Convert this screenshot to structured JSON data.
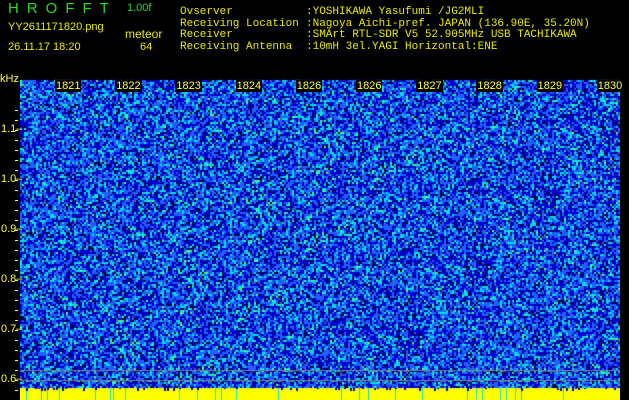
{
  "header": {
    "app_title": "HROFFT",
    "version": "1.00f",
    "filename": "YY2611171820.png",
    "datetime": "26.11.17 18:20",
    "mode_label": "meteor",
    "count": "64",
    "info": [
      {
        "label": "Ovserver",
        "value": ":YOSHIKAWA Yasufumi /JG2MLI"
      },
      {
        "label": "Receiving Location",
        "value": ":Nagoya Aichi-pref. JAPAN (136.90E, 35.20N)"
      },
      {
        "label": "Receiver",
        "value": ":SMArt RTL-SDR V5 52.905MHz USB TACHIKAWA"
      },
      {
        "label": "Receiving Antenna",
        "value": ":10mH 3el.YAGI Horizontal:ENE"
      }
    ]
  },
  "chart_data": {
    "type": "heatmap",
    "ylabel": "kHz",
    "x_tick_labels": [
      "1821",
      "1822",
      "1823",
      "1824",
      "1826",
      "1826",
      "1827",
      "1828",
      "1829",
      "1830"
    ],
    "y_tick_labels": [
      "1.1",
      "1.0",
      "0.9",
      "0.8",
      "0.7",
      "0.6"
    ],
    "ylim": [
      0.58,
      1.16
    ],
    "colors": {
      "background": "#000000",
      "noise_low": "#0000c8",
      "noise_mid": "#2060ff",
      "noise_high": "#00e0e0",
      "signal": "#ffff00",
      "marker_line": "#808080"
    },
    "description_marks": "noise only, no meteor echoes visible"
  }
}
